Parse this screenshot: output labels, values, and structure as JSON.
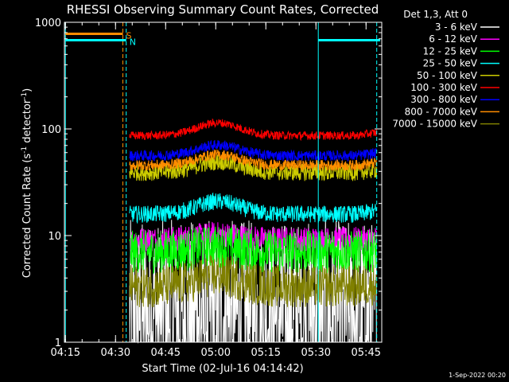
{
  "chart_data": {
    "type": "line",
    "title": "RHESSI Observing Summary Count Rates, Corrected",
    "xlabel": "Start Time (02-Jul-16 04:14:42)",
    "ylabel_prefix": "Corrected Count Rate (s",
    "ylabel_sup": "-1",
    "ylabel_mid": " detector",
    "ylabel_sup2": "-1",
    "ylabel_suffix": ")",
    "yscale": "log",
    "ylim": [
      1,
      1000
    ],
    "xlim_minutes": [
      0,
      95
    ],
    "x_ticks": [
      {
        "label": "04:15",
        "min": 0.3
      },
      {
        "label": "04:30",
        "min": 15.3
      },
      {
        "label": "04:45",
        "min": 30.3
      },
      {
        "label": "05:00",
        "min": 45.3
      },
      {
        "label": "05:15",
        "min": 60.3
      },
      {
        "label": "05:30",
        "min": 75.3
      },
      {
        "label": "05:45",
        "min": 90.3
      }
    ],
    "y_ticks": [
      {
        "label": "1",
        "value": 1
      },
      {
        "label": "10",
        "value": 10
      },
      {
        "label": "100",
        "value": 100
      },
      {
        "label": "1000",
        "value": 1000
      }
    ],
    "legend_header": "Det 1,3, Att 0",
    "legend_placement": "top-right",
    "data_start_min": 19.5,
    "data_end_min": 93.5,
    "series": [
      {
        "name": "3 - 6 keV",
        "color": "#ffffff",
        "lo": 1.0,
        "hi": 3.2,
        "noise": 0.9,
        "hump": 0.0
      },
      {
        "name": "6 - 12 keV",
        "color": "#ff00ff",
        "lo": 8.0,
        "hi": 10.5,
        "noise": 0.12,
        "hump": 0.05
      },
      {
        "name": "12 - 25 keV",
        "color": "#00ff00",
        "lo": 5.5,
        "hi": 9.0,
        "noise": 0.2,
        "hump": 0.05
      },
      {
        "name": "25 - 50 keV",
        "color": "#00ffff",
        "lo": 14,
        "hi": 18,
        "noise": 0.08,
        "hump": 0.12
      },
      {
        "name": "50 - 100 keV",
        "color": "#cccc00",
        "lo": 34,
        "hi": 45,
        "noise": 0.08,
        "hump": 0.1
      },
      {
        "name": "100 - 300 keV",
        "color": "#ff0000",
        "lo": 75,
        "hi": 100,
        "noise": 0.04,
        "hump": 0.12
      },
      {
        "name": "300 - 800 keV",
        "color": "#0000ff",
        "lo": 50,
        "hi": 63,
        "noise": 0.05,
        "hump": 0.1
      },
      {
        "name": "800 - 7000 keV",
        "color": "#ff8c00",
        "lo": 40,
        "hi": 52,
        "noise": 0.05,
        "hump": 0.1
      },
      {
        "name": "7000 - 15000 keV",
        "color": "#808000",
        "lo": 2.5,
        "hi": 4.5,
        "noise": 0.2,
        "hump": 0.1
      }
    ],
    "flag_bars": [
      {
        "label": "S",
        "color": "#ff8c00",
        "value": 780,
        "start_min": 0.3,
        "end_min": 17.5
      },
      {
        "label": "N",
        "color": "#00ffff",
        "value": 680,
        "start_min": 0.3,
        "end_min": 18.5
      },
      {
        "label": "",
        "color": "#00ffff",
        "value": 680,
        "start_min": 76.0,
        "end_min": 94.5
      }
    ],
    "vlines": [
      {
        "min": 17.5,
        "color": "#ff8c00",
        "style": "dashed"
      },
      {
        "min": 18.5,
        "color": "#00ffff",
        "style": "dashed"
      },
      {
        "min": 76.0,
        "color": "#00ffff",
        "style": "solid"
      },
      {
        "min": 93.5,
        "color": "#00ffff",
        "style": "dashed"
      },
      {
        "min": 0.3,
        "color": "#00ffff",
        "style": "solid"
      }
    ],
    "footer": "1-Sep-2022 00:20"
  }
}
